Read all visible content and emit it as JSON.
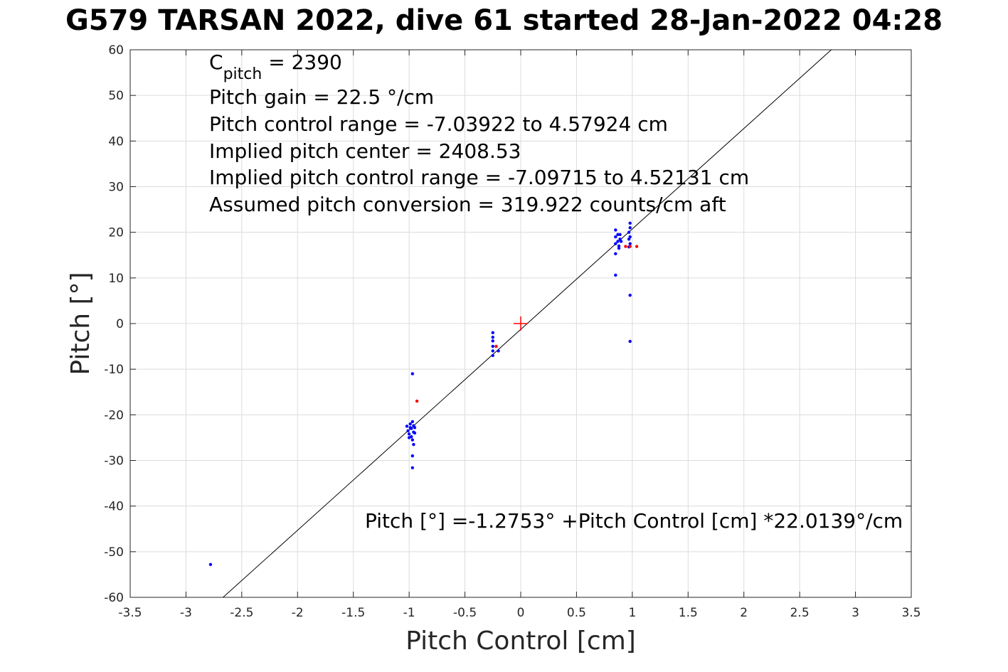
{
  "chart_data": {
    "type": "scatter",
    "title": "G579 TARSAN 2022, dive 61 started 28-Jan-2022 04:28",
    "xlabel": "Pitch Control [cm]",
    "ylabel": "Pitch [°]",
    "xlim": [
      -3.5,
      3.5
    ],
    "ylim": [
      -60,
      60
    ],
    "xticks": [
      -3.5,
      -3,
      -2.5,
      -2,
      -1.5,
      -1,
      -0.5,
      0,
      0.5,
      1,
      1.5,
      2,
      2.5,
      3,
      3.5
    ],
    "xtick_labels": [
      "-3.5",
      "-3",
      "-2.5",
      "-2",
      "-1.5",
      "-1",
      "-0.5",
      "0",
      "0.5",
      "1",
      "1.5",
      "2",
      "2.5",
      "3",
      "3.5"
    ],
    "yticks": [
      -60,
      -50,
      -40,
      -30,
      -20,
      -10,
      0,
      10,
      20,
      30,
      40,
      50,
      60
    ],
    "ytick_labels": [
      "-60",
      "-50",
      "-40",
      "-30",
      "-20",
      "-10",
      "0",
      "10",
      "20",
      "30",
      "40",
      "50",
      "60"
    ],
    "grid": true,
    "fit_line": {
      "intercept": -1.2753,
      "slope": 22.0139,
      "color": "#000000"
    },
    "center_marker": {
      "x": 0,
      "y": 0,
      "color": "#ff0000"
    },
    "series": [
      {
        "color": "#0000ff",
        "points": [
          [
            -2.78,
            -52.8
          ],
          [
            -0.97,
            -11.0
          ],
          [
            -0.97,
            -29.0
          ],
          [
            -0.97,
            -31.6
          ],
          [
            -1.02,
            -22.5
          ],
          [
            -1.01,
            -23.5
          ],
          [
            -1.0,
            -24.2
          ],
          [
            -0.99,
            -22.0
          ],
          [
            -0.98,
            -23.0
          ],
          [
            -0.98,
            -24.8
          ],
          [
            -0.97,
            -21.5
          ],
          [
            -0.97,
            -25.5
          ],
          [
            -0.96,
            -22.4
          ],
          [
            -0.96,
            -23.8
          ],
          [
            -0.96,
            -26.5
          ],
          [
            -0.95,
            -22.8
          ],
          [
            -0.95,
            -24.0
          ],
          [
            -1.0,
            -25.0
          ],
          [
            -0.99,
            -22.8
          ],
          [
            -0.25,
            -2.0
          ],
          [
            -0.25,
            -3.0
          ],
          [
            -0.25,
            -3.8
          ],
          [
            -0.25,
            -5.0
          ],
          [
            -0.25,
            -6.0
          ],
          [
            -0.25,
            -7.0
          ],
          [
            -0.2,
            -6.0
          ],
          [
            0.85,
            10.6
          ],
          [
            0.85,
            15.3
          ],
          [
            0.85,
            17.5
          ],
          [
            0.85,
            19.0
          ],
          [
            0.85,
            20.5
          ],
          [
            0.87,
            18.0
          ],
          [
            0.87,
            19.5
          ],
          [
            0.88,
            17.0
          ],
          [
            0.88,
            16.5
          ],
          [
            0.89,
            18.5
          ],
          [
            0.89,
            19.5
          ],
          [
            0.9,
            18.0
          ],
          [
            0.97,
            16.8
          ],
          [
            0.97,
            18.5
          ],
          [
            0.97,
            20.0
          ],
          [
            0.98,
            21.0
          ],
          [
            0.98,
            22.0
          ],
          [
            0.98,
            19.0
          ],
          [
            0.98,
            17.5
          ],
          [
            0.98,
            6.2
          ],
          [
            0.98,
            -3.9
          ]
        ]
      },
      {
        "color": "#ff0000",
        "points": [
          [
            -0.93,
            -17.0
          ],
          [
            -0.22,
            -5.0
          ],
          [
            0.94,
            16.9
          ],
          [
            0.98,
            16.9
          ],
          [
            1.04,
            16.9
          ]
        ]
      }
    ],
    "annotations": {
      "cpitch_main": "C",
      "cpitch_sub": "pitch",
      "cpitch_value": " = 2390",
      "lines": [
        "Pitch gain = 22.5 °/cm",
        "Pitch control range = -7.03922 to 4.57924 cm",
        "Implied pitch center = 2408.53",
        "Implied pitch control range = -7.09715 to 4.52131 cm",
        "Assumed pitch conversion = 319.922 counts/cm aft"
      ],
      "fit_equation": "Pitch [°] =-1.2753° +Pitch Control [cm] *22.0139°/cm"
    }
  }
}
